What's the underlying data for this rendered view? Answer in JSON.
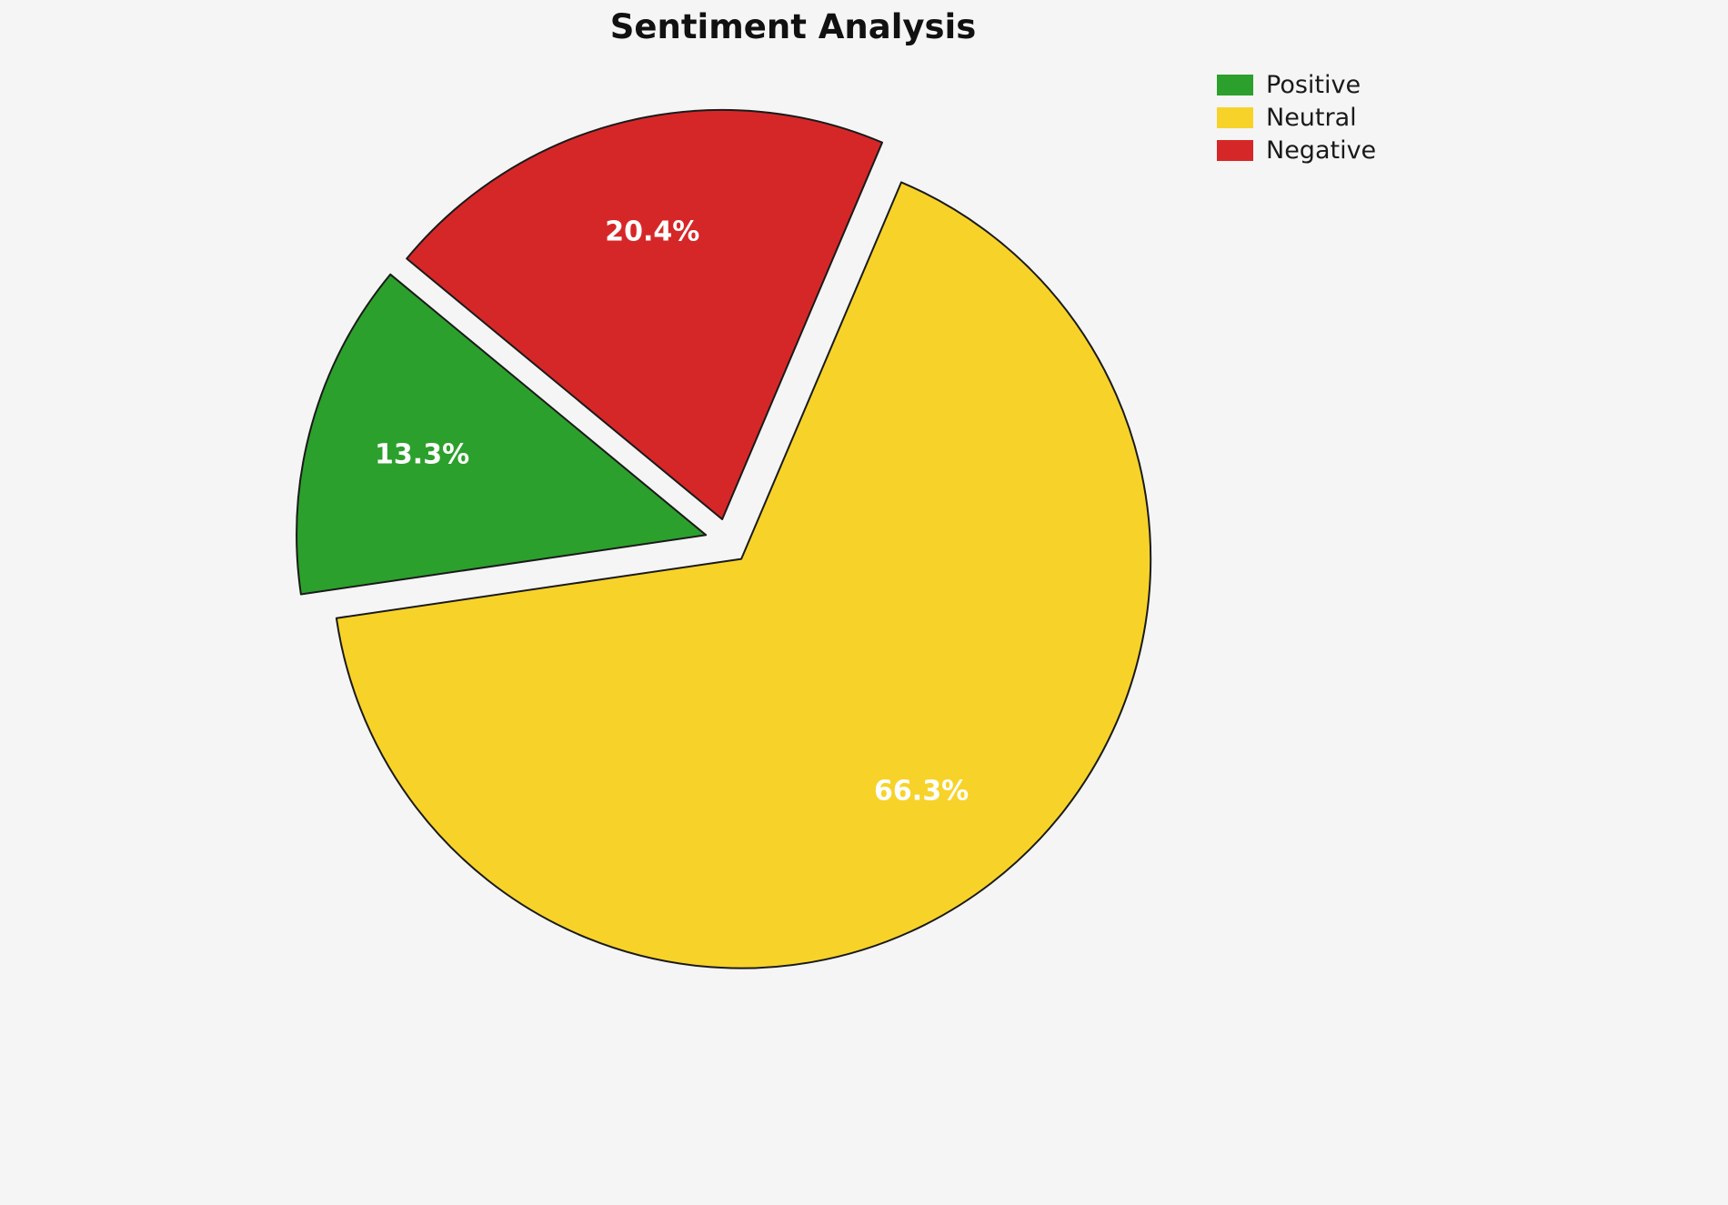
{
  "chart_data": {
    "type": "pie",
    "title": "Sentiment Analysis",
    "labels": [
      "Positive",
      "Neutral",
      "Negative"
    ],
    "values": [
      13.3,
      66.3,
      20.4
    ],
    "pct_labels": [
      "13.3%",
      "66.3%",
      "20.4%"
    ],
    "colors": [
      "#2ca02c",
      "#f7d32a",
      "#d62728"
    ],
    "edge_color": "#1a1a1a",
    "label_color": "#ffffff",
    "legend_position": "upper-right",
    "start_angle_deg": 67,
    "direction": "counterclockwise",
    "draw_order": [
      "Negative",
      "Positive",
      "Neutral"
    ],
    "explode": 0.055
  },
  "legend": {
    "items": [
      {
        "label": "Positive",
        "color": "#2ca02c"
      },
      {
        "label": "Neutral",
        "color": "#f7d32a"
      },
      {
        "label": "Negative",
        "color": "#d62728"
      }
    ]
  }
}
